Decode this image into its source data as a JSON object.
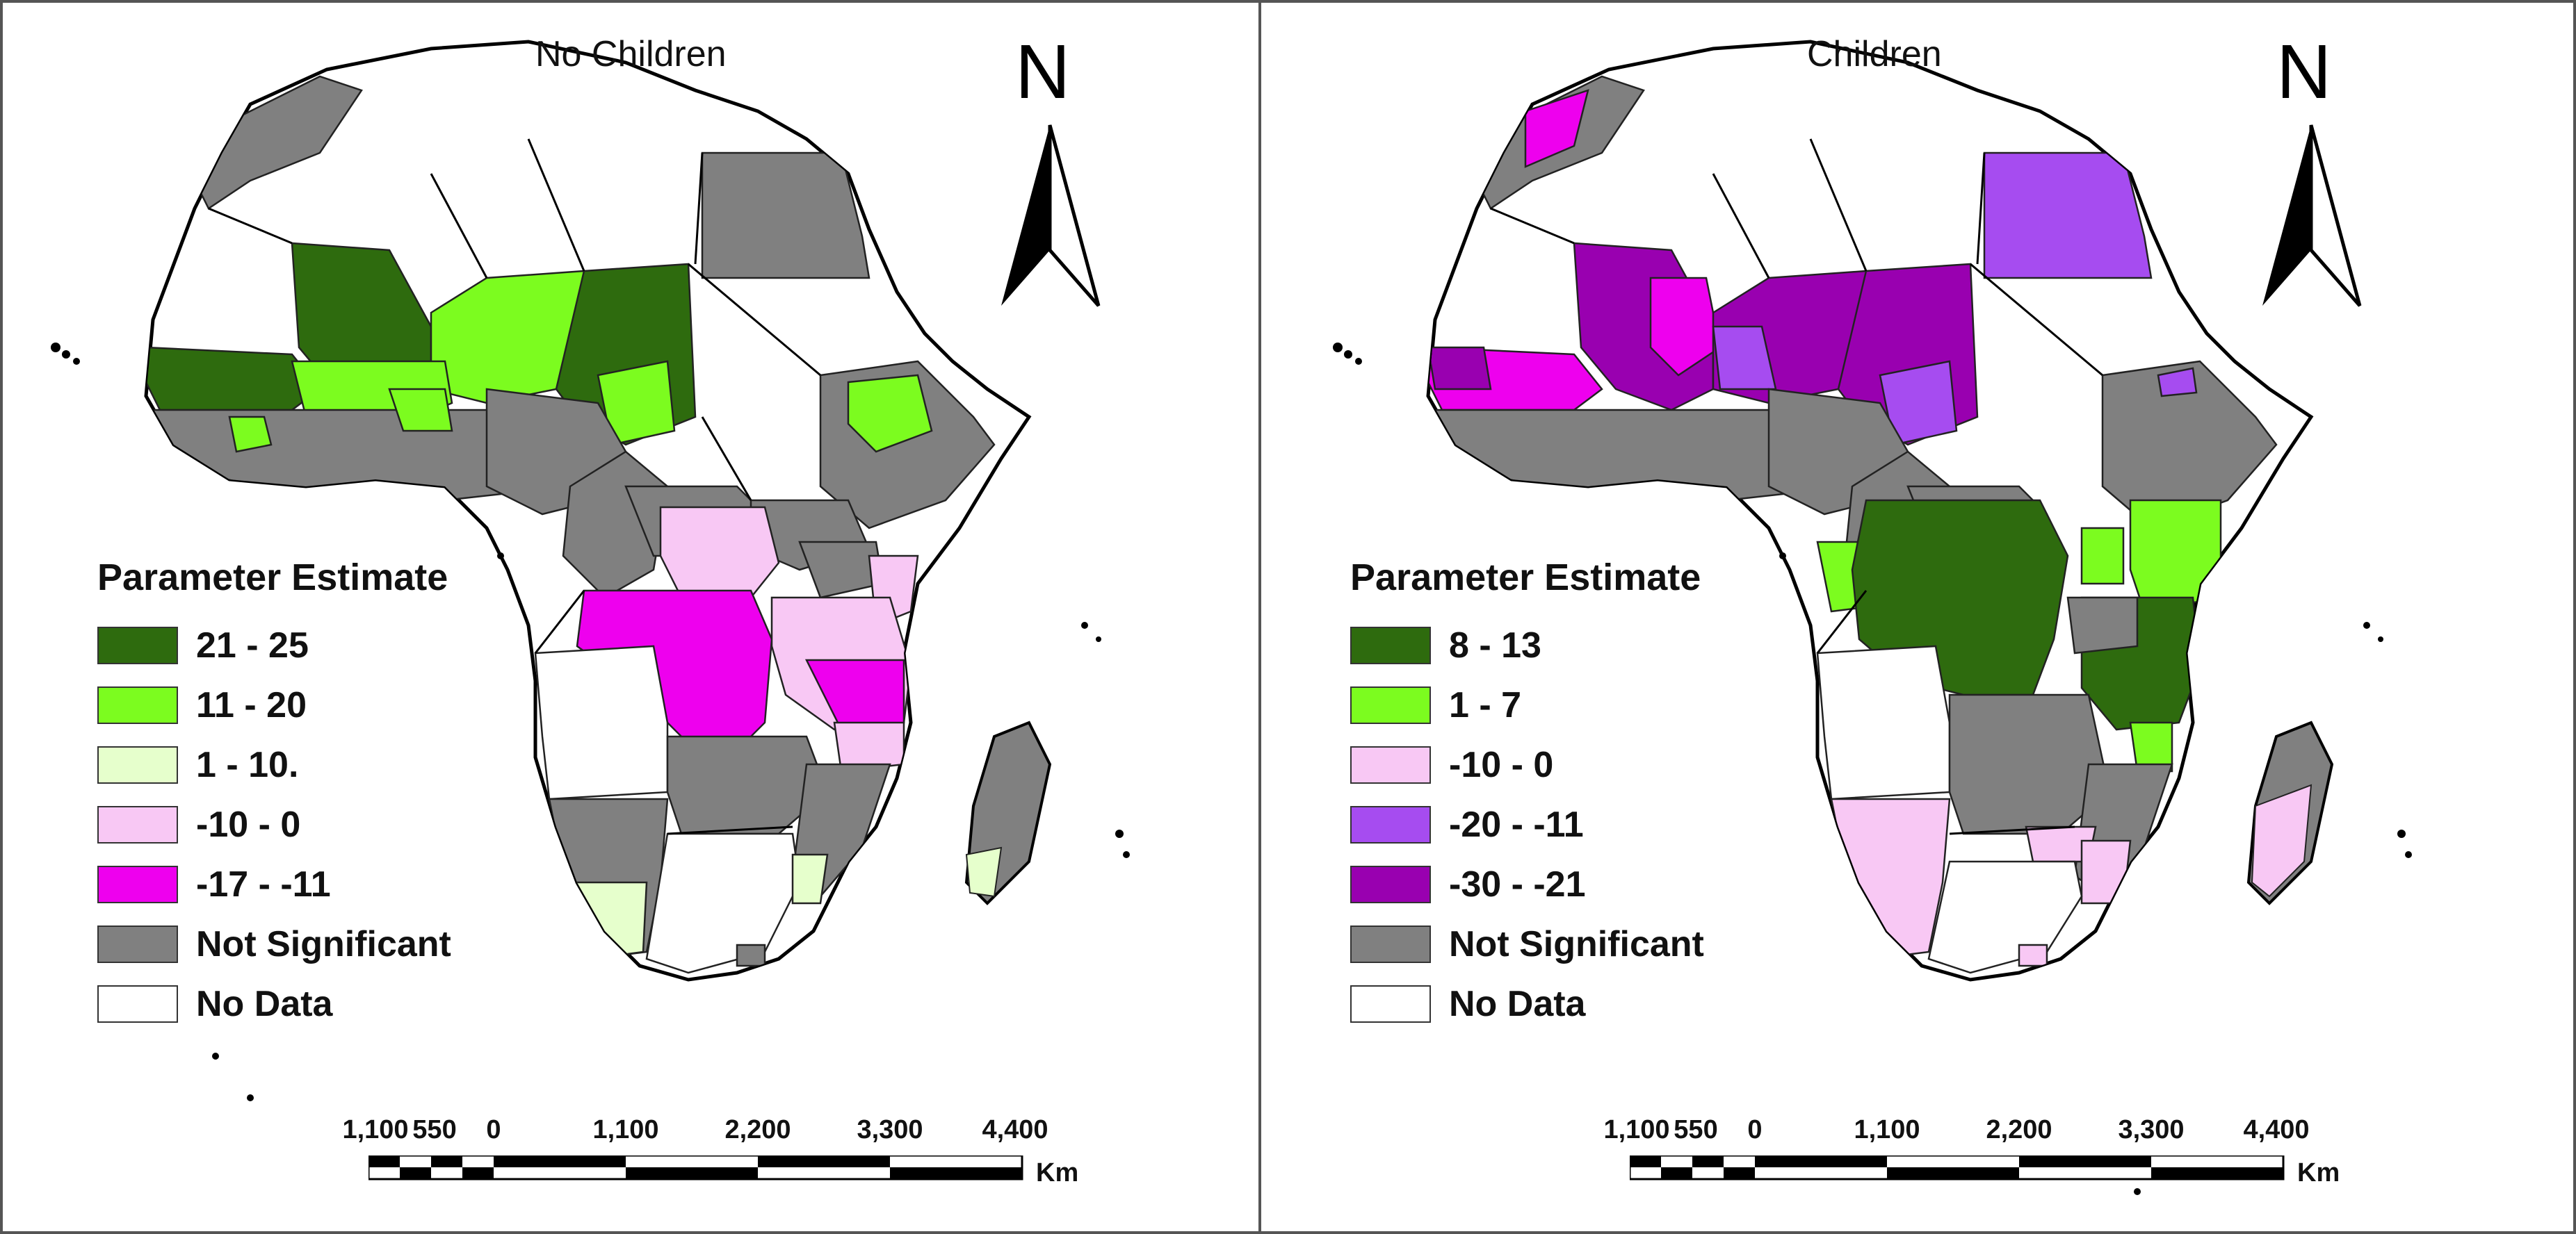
{
  "panels": [
    {
      "title": "No Children",
      "north_label": "N",
      "legend": {
        "title": "Parameter Estimate",
        "items": [
          {
            "label": "21 - 25",
            "color": "#2e6b0e"
          },
          {
            "label": "11 - 20",
            "color": "#7cfc1f"
          },
          {
            "label": "1 - 10.",
            "color": "#e6ffcc"
          },
          {
            "label": "-10 - 0",
            "color": "#f8c8f4"
          },
          {
            "label": "-17 - -11",
            "color": "#ee00ee"
          },
          {
            "label": "Not Significant",
            "color": "#808080"
          },
          {
            "label": "No Data",
            "color": "#ffffff"
          }
        ]
      },
      "scale": {
        "ticks": [
          "1,100",
          "550",
          "0",
          "1,100",
          "2,200",
          "3,300",
          "4,400"
        ],
        "unit": "Km"
      }
    },
    {
      "title": "Children",
      "north_label": "N",
      "legend": {
        "title": "Parameter Estimate",
        "items": [
          {
            "label": "8 - 13",
            "color": "#2e6b0e"
          },
          {
            "label": "1 - 7",
            "color": "#7cfc1f"
          },
          {
            "label": "-10 - 0",
            "color": "#f8c8f4"
          },
          {
            "label": "-20 - -11",
            "color": "#a64cf0"
          },
          {
            "label": "-30 - -21",
            "color": "#9900b0"
          },
          {
            "label": "Not Significant",
            "color": "#808080"
          },
          {
            "label": "No Data",
            "color": "#ffffff"
          }
        ]
      },
      "scale": {
        "ticks": [
          "1,100",
          "550",
          "0",
          "1,100",
          "2,200",
          "3,300",
          "4,400"
        ],
        "unit": "Km"
      }
    }
  ]
}
